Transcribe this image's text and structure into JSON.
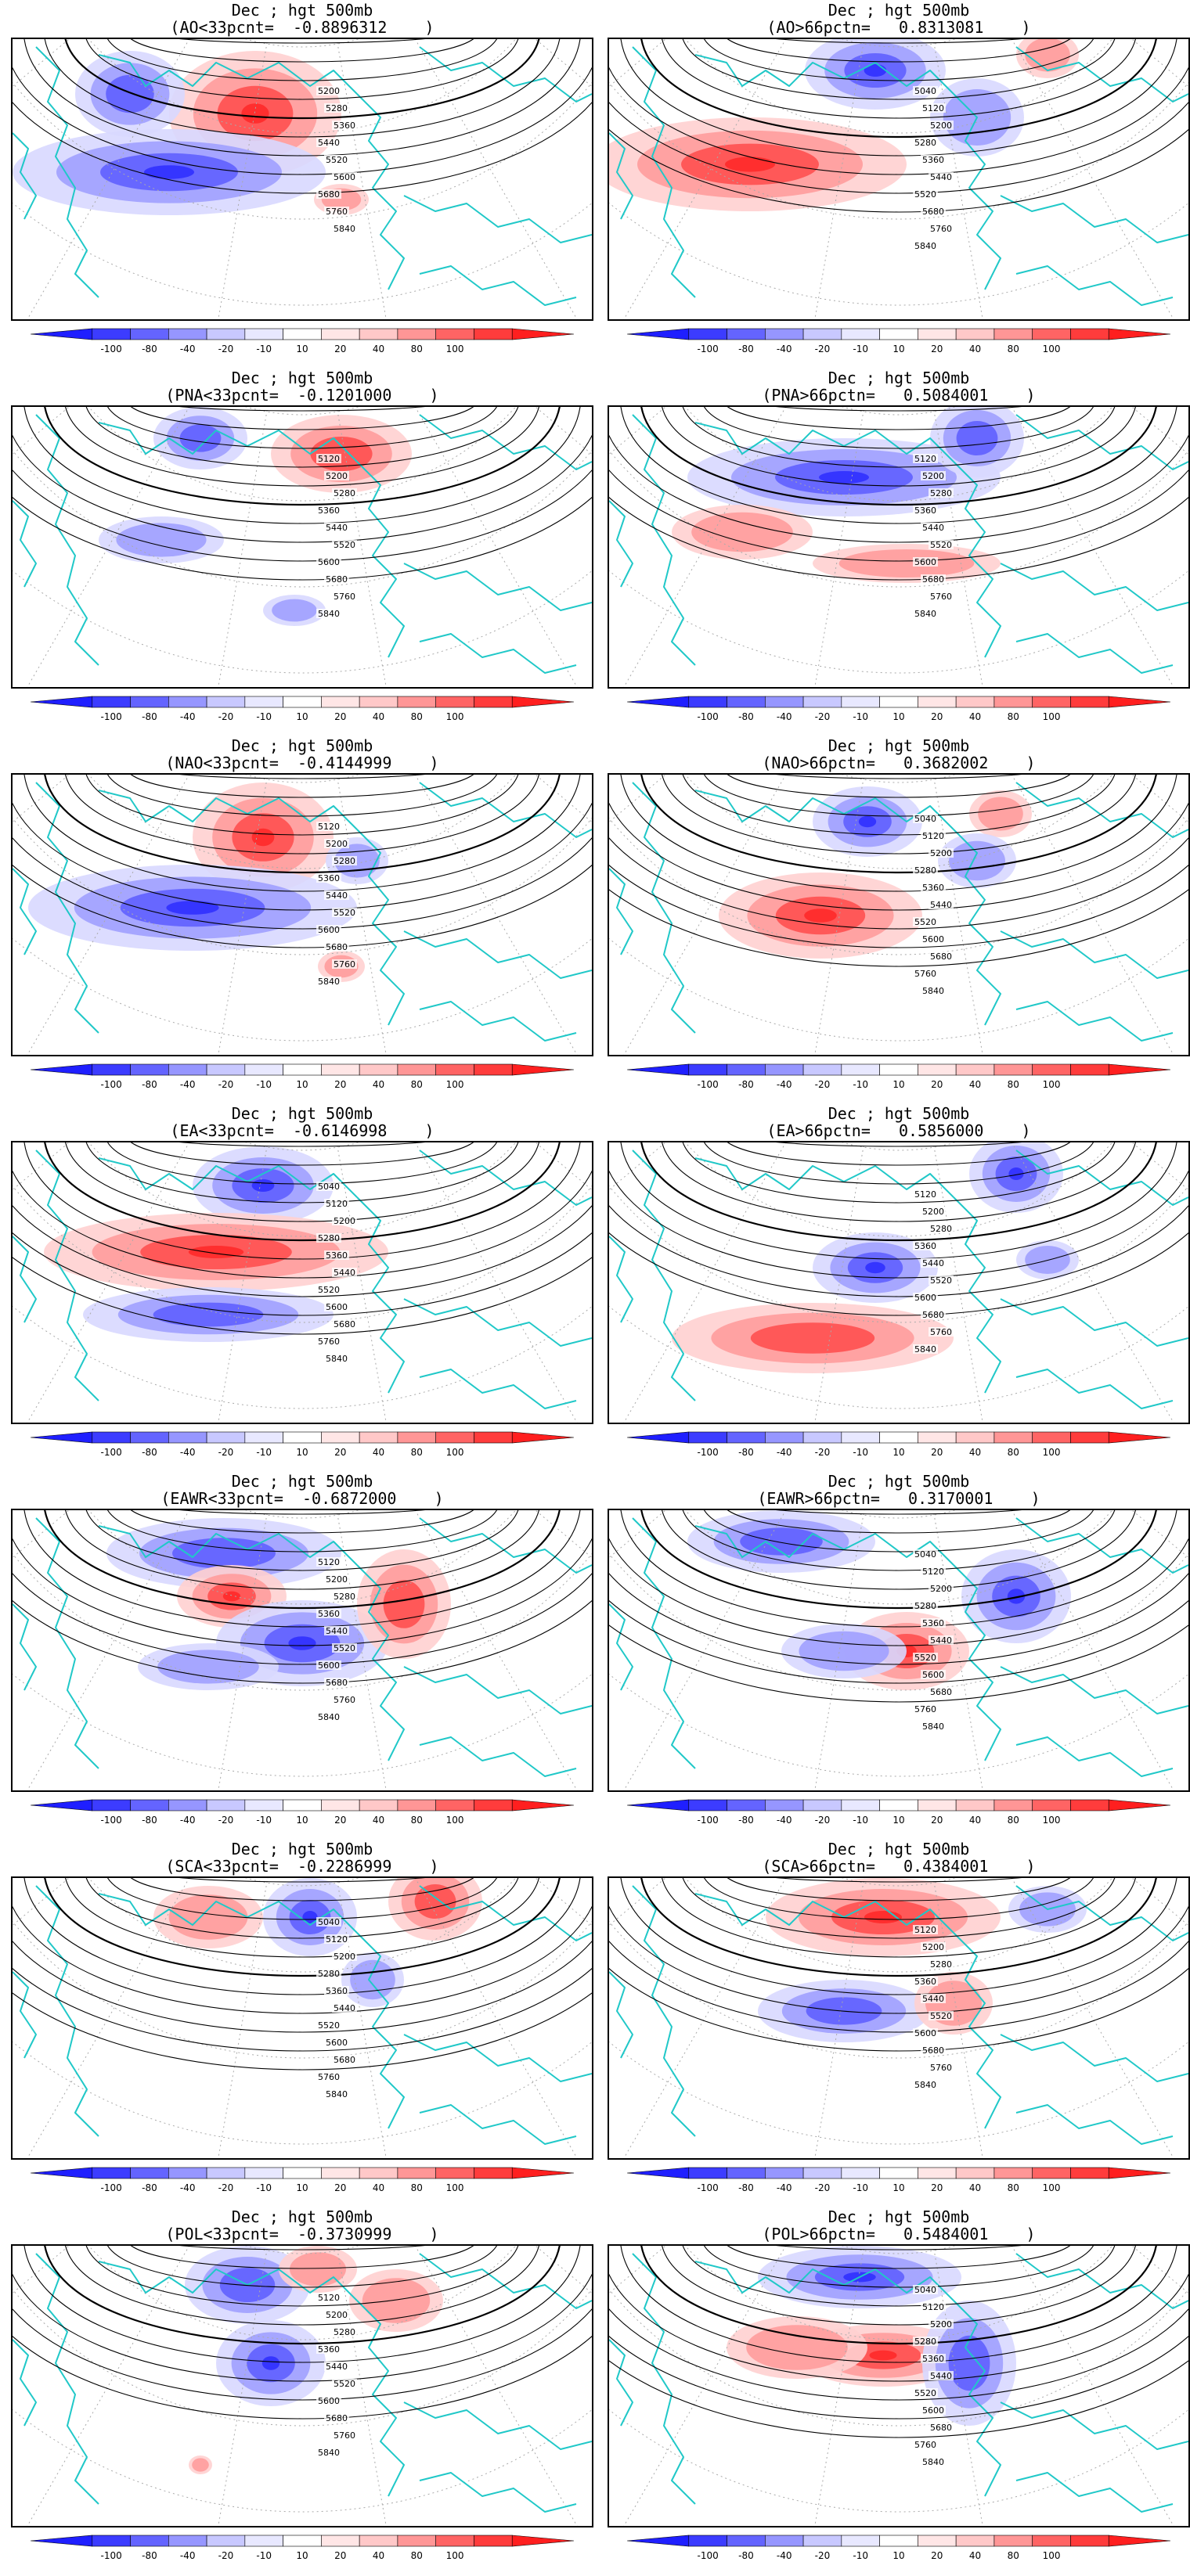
{
  "colorbar": {
    "tick_labels": [
      "-100",
      "-80",
      "-40",
      "-20",
      "-10",
      "10",
      "20",
      "40",
      "80",
      "100"
    ],
    "colors": [
      "#1f1fff",
      "#3c3cff",
      "#6464ff",
      "#9696ff",
      "#c8c8ff",
      "#e8e8ff",
      "#ffffff",
      "#ffe6e6",
      "#ffc8c8",
      "#ff9696",
      "#ff6464",
      "#ff3c3c",
      "#ff1f1f"
    ]
  },
  "panels": [
    {
      "title": "Dec ; hgt 500mb",
      "subtitle": "(AO<33pcnt=  -0.8896312    )",
      "labels": [
        "5200",
        "5280",
        "5360",
        "5440",
        "5520",
        "5600",
        "5680",
        "5760",
        "5840"
      ]
    },
    {
      "title": "Dec ; hgt 500mb",
      "subtitle": "(AO>66pctn=   0.8313081    )",
      "labels": [
        "5040",
        "5120",
        "5200",
        "5280",
        "5360",
        "5440",
        "5520",
        "5680",
        "5760",
        "5840"
      ]
    },
    {
      "title": "Dec ; hgt 500mb",
      "subtitle": "(PNA<33pcnt=  -0.1201000    )",
      "labels": [
        "5120",
        "5200",
        "5280",
        "5360",
        "5440",
        "5520",
        "5600",
        "5680",
        "5760",
        "5840"
      ]
    },
    {
      "title": "Dec ; hgt 500mb",
      "subtitle": "(PNA>66pctn=   0.5084001    )",
      "labels": [
        "5120",
        "5200",
        "5280",
        "5360",
        "5440",
        "5520",
        "5600",
        "5680",
        "5760",
        "5840"
      ]
    },
    {
      "title": "Dec ; hgt 500mb",
      "subtitle": "(NAO<33pcnt=  -0.4144999    )",
      "labels": [
        "5120",
        "5200",
        "5280",
        "5360",
        "5440",
        "5520",
        "5600",
        "5680",
        "5760",
        "5840"
      ]
    },
    {
      "title": "Dec ; hgt 500mb",
      "subtitle": "(NAO>66pctn=   0.3682002    )",
      "labels": [
        "5040",
        "5120",
        "5200",
        "5280",
        "5360",
        "5440",
        "5520",
        "5600",
        "5680",
        "5760",
        "5840"
      ]
    },
    {
      "title": "Dec ; hgt 500mb",
      "subtitle": "(EA<33pcnt=  -0.6146998    )",
      "labels": [
        "5040",
        "5120",
        "5200",
        "5280",
        "5360",
        "5440",
        "5520",
        "5600",
        "5680",
        "5760",
        "5840"
      ]
    },
    {
      "title": "Dec ; hgt 500mb",
      "subtitle": "(EA>66pctn=   0.5856000    )",
      "labels": [
        "5120",
        "5200",
        "5280",
        "5360",
        "5440",
        "5520",
        "5600",
        "5680",
        "5760",
        "5840"
      ]
    },
    {
      "title": "Dec ; hgt 500mb",
      "subtitle": "(EAWR<33pcnt=  -0.6872000    )",
      "labels": [
        "5120",
        "5200",
        "5280",
        "5360",
        "5440",
        "5520",
        "5600",
        "5680",
        "5760",
        "5840"
      ]
    },
    {
      "title": "Dec ; hgt 500mb",
      "subtitle": "(EAWR>66pctn=   0.3170001    )",
      "labels": [
        "5040",
        "5120",
        "5200",
        "5280",
        "5360",
        "5440",
        "5520",
        "5600",
        "5680",
        "5760",
        "5840"
      ]
    },
    {
      "title": "Dec ; hgt 500mb",
      "subtitle": "(SCA<33pcnt=  -0.2286999    )",
      "labels": [
        "5040",
        "5120",
        "5200",
        "5280",
        "5360",
        "5440",
        "5520",
        "5600",
        "5680",
        "5760",
        "5840"
      ]
    },
    {
      "title": "Dec ; hgt 500mb",
      "subtitle": "(SCA>66pctn=   0.4384001    )",
      "labels": [
        "5120",
        "5200",
        "5280",
        "5360",
        "5440",
        "5520",
        "5600",
        "5680",
        "5760",
        "5840"
      ]
    },
    {
      "title": "Dec ; hgt 500mb",
      "subtitle": "(POL<33pcnt=  -0.3730999    )",
      "labels": [
        "5120",
        "5200",
        "5280",
        "5360",
        "5440",
        "5520",
        "5600",
        "5680",
        "5760",
        "5840"
      ]
    },
    {
      "title": "Dec ; hgt 500mb",
      "subtitle": "(POL>66pctn=   0.5484001    )",
      "labels": [
        "5040",
        "5120",
        "5200",
        "5280",
        "5360",
        "5440",
        "5520",
        "5600",
        "5680",
        "5760",
        "5840"
      ]
    }
  ]
}
